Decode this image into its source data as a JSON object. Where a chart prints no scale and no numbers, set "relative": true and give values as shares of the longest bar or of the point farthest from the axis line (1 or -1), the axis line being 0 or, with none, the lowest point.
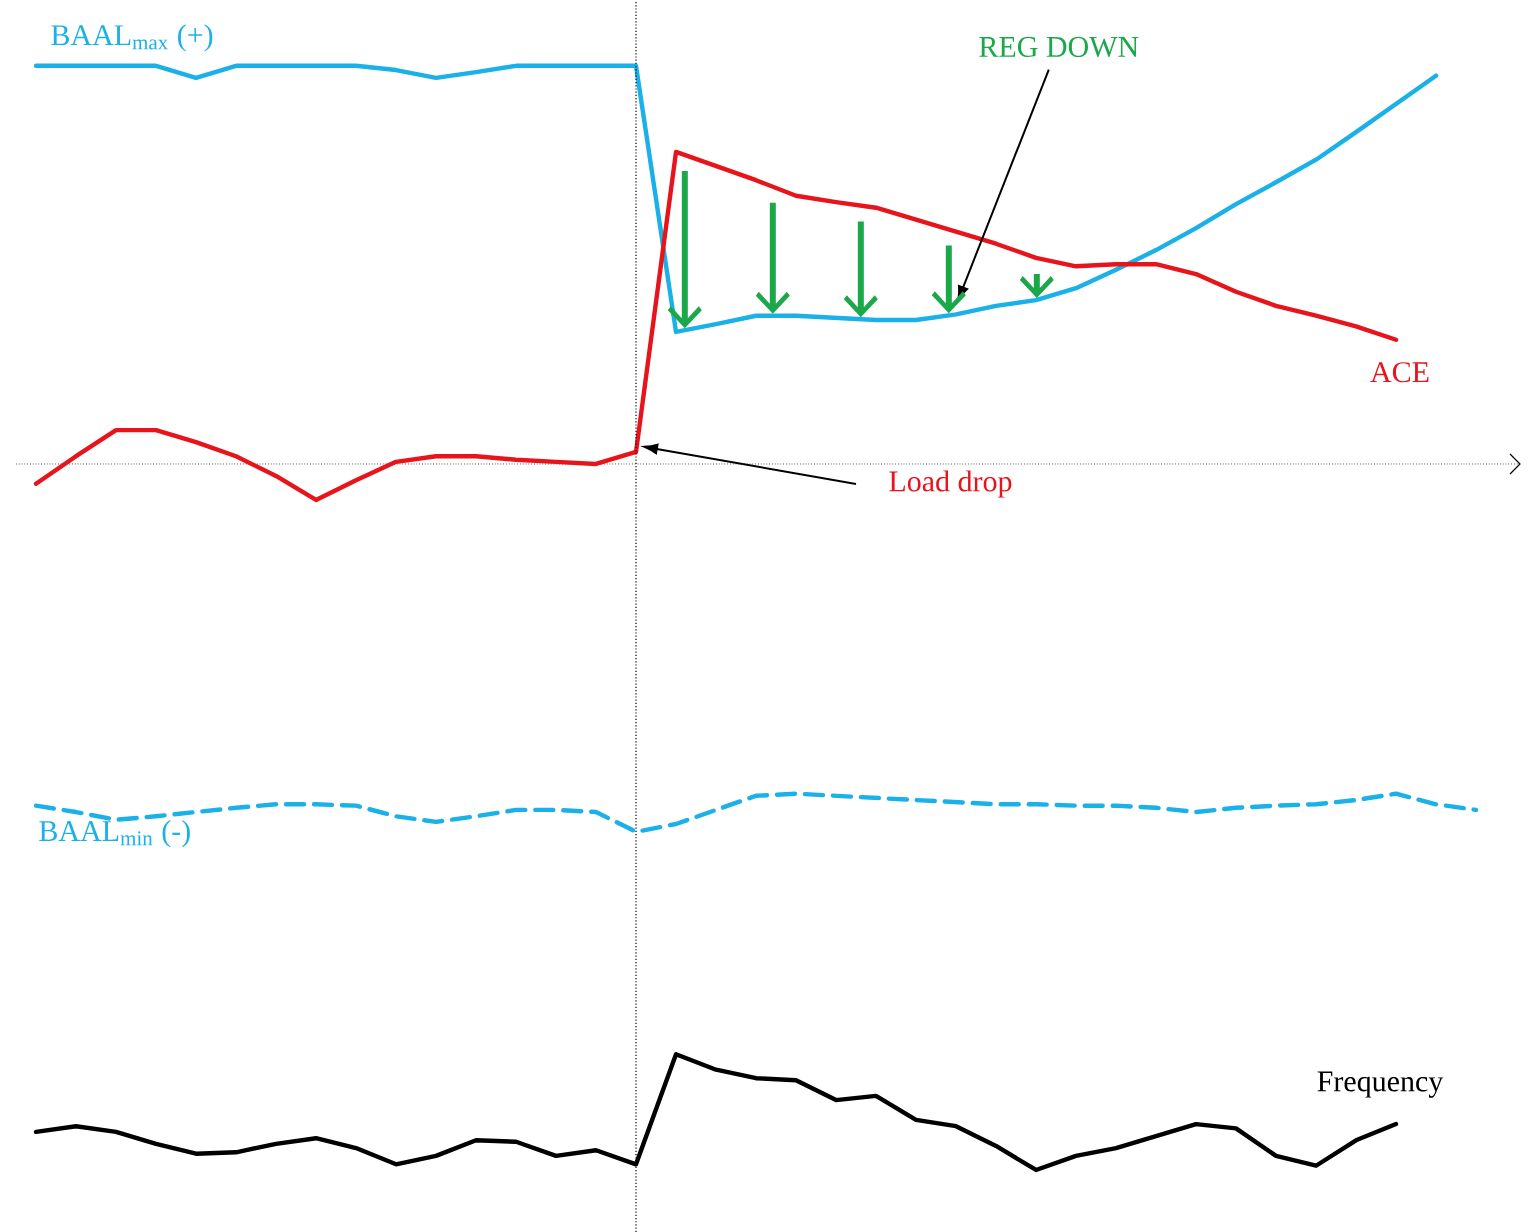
{
  "chart_data": {
    "type": "line",
    "relative": true,
    "marker": "none",
    "categories": [
      null,
      null,
      null,
      null,
      null,
      null,
      null,
      null,
      null,
      null,
      null,
      null,
      null,
      null,
      null,
      null,
      null,
      null,
      null,
      null,
      null,
      null,
      null,
      null,
      null,
      null,
      null,
      null,
      null,
      null,
      null,
      null,
      null,
      null,
      null,
      null,
      null
    ],
    "series": [
      {
        "name": "BAAL$_{max}$ (+)",
        "color": "#1ab0e8",
        "line_style": "solid",
        "values": [
          0.564,
          0.564,
          0.564,
          0.564,
          0.547,
          0.564,
          0.564,
          0.564,
          0.564,
          0.558,
          0.547,
          0.555,
          0.564,
          0.564,
          0.564,
          0.564,
          0.187,
          0.198,
          0.21,
          0.21,
          0.207,
          0.204,
          0.204,
          0.212,
          0.224,
          0.232,
          0.249,
          0.275,
          0.303,
          0.334,
          0.368,
          0.399,
          0.431,
          0.47,
          0.51,
          0.55,
          null
        ]
      },
      {
        "name": "ACE",
        "color": "#e8141c",
        "line_style": "solid",
        "values": [
          -0.028,
          0.011,
          0.048,
          0.048,
          0.031,
          0.011,
          -0.017,
          -0.051,
          -0.023,
          0.003,
          0.011,
          0.011,
          0.006,
          0.003,
          0,
          0.017,
          0.442,
          0.422,
          0.402,
          0.38,
          0.371,
          0.363,
          0.346,
          0.329,
          0.312,
          0.292,
          0.28,
          0.283,
          0.283,
          0.269,
          0.244,
          0.224,
          0.21,
          0.195,
          0.176,
          null,
          null
        ]
      },
      {
        "name": "BAAL$_{min}$ (-)",
        "color": "#1ab0e8",
        "line_style": "dashed",
        "values": [
          -0.484,
          -0.493,
          -0.504,
          -0.499,
          -0.493,
          -0.487,
          -0.482,
          -0.482,
          -0.484,
          -0.499,
          -0.507,
          -0.499,
          -0.49,
          -0.49,
          -0.493,
          -0.521,
          -0.51,
          -0.49,
          -0.47,
          -0.467,
          -0.47,
          -0.473,
          -0.476,
          -0.479,
          -0.482,
          -0.482,
          -0.484,
          -0.484,
          -0.487,
          -0.493,
          -0.487,
          -0.484,
          -0.482,
          -0.476,
          -0.467,
          -0.482,
          -0.49
        ]
      },
      {
        "name": "Frequency",
        "color": "#000000",
        "line_style": "solid",
        "values": [
          -0.946,
          -0.938,
          -0.946,
          -0.963,
          -0.977,
          -0.975,
          -0.963,
          -0.955,
          -0.969,
          -0.992,
          -0.98,
          -0.958,
          -0.96,
          -0.98,
          -0.972,
          -0.992,
          -0.836,
          -0.858,
          -0.87,
          -0.873,
          -0.901,
          -0.895,
          -0.929,
          -0.938,
          -0.966,
          -1,
          -0.98,
          -0.969,
          -0.952,
          -0.935,
          -0.941,
          -0.98,
          -0.994,
          -0.958,
          -0.935,
          null,
          null
        ]
      }
    ],
    "annotations": [
      "REG DOWN",
      "Load drop"
    ]
  }
}
